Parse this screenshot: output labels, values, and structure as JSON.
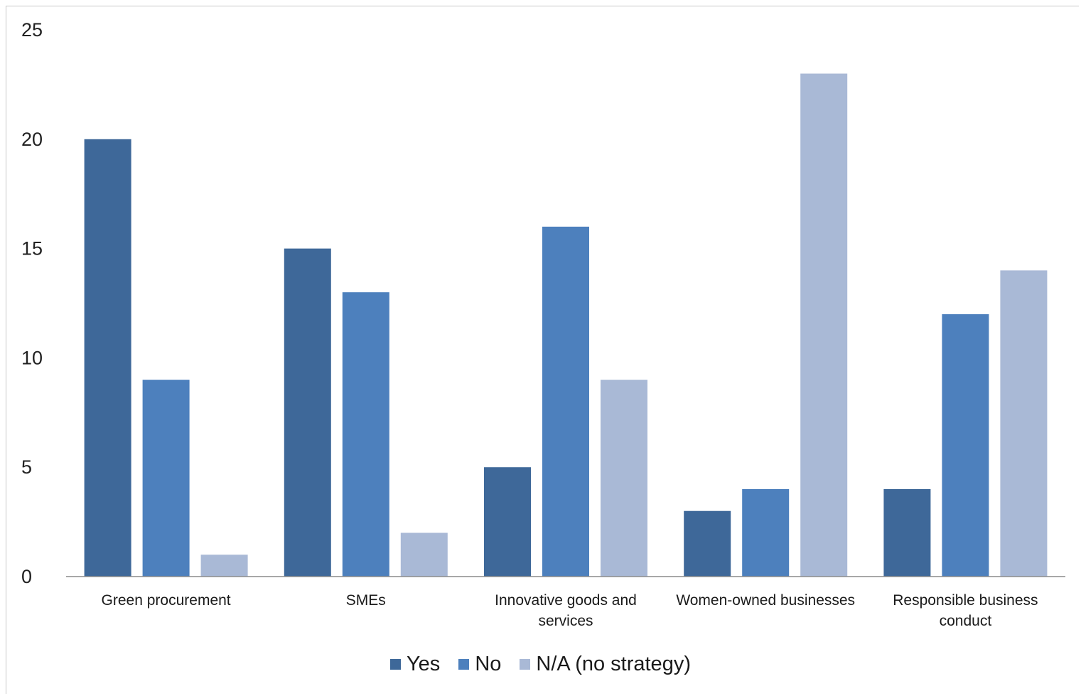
{
  "chart_data": {
    "type": "bar",
    "categories": [
      [
        "Green procurement"
      ],
      [
        "SMEs"
      ],
      [
        "Innovative goods and",
        "services"
      ],
      [
        "Women-owned businesses"
      ],
      [
        "Responsible business",
        "conduct"
      ]
    ],
    "series": [
      {
        "name": "Yes",
        "color": "#3e6899",
        "values": [
          20,
          15,
          5,
          3,
          4
        ]
      },
      {
        "name": "No",
        "color": "#4d80bd",
        "values": [
          9,
          13,
          16,
          4,
          12
        ]
      },
      {
        "name": "N/A (no strategy)",
        "color": "#a9b9d6",
        "values": [
          1,
          2,
          9,
          23,
          14
        ]
      }
    ],
    "yticks": [
      0,
      5,
      10,
      15,
      20,
      25
    ],
    "ylim": [
      0,
      25
    ],
    "grid": false,
    "legend": "bottom"
  }
}
